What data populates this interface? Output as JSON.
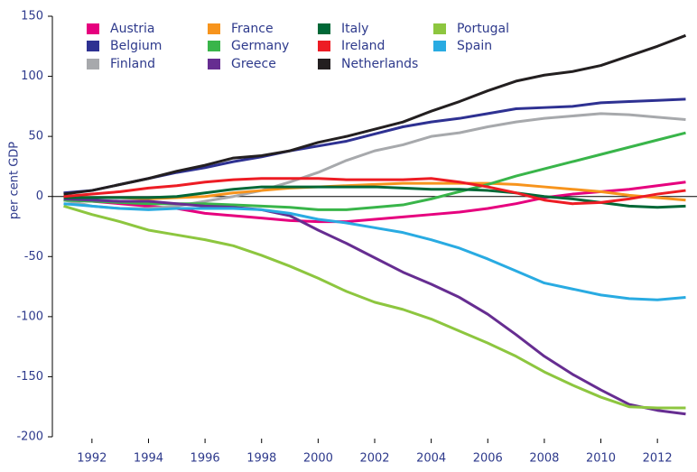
{
  "chart_data": {
    "type": "line",
    "y_label": "per cent GDP",
    "x": [
      1991,
      1992,
      1993,
      1994,
      1995,
      1996,
      1997,
      1998,
      1999,
      2000,
      2001,
      2002,
      2003,
      2004,
      2005,
      2006,
      2007,
      2008,
      2009,
      2010,
      2011,
      2012,
      2013
    ],
    "xlim": [
      1990.6,
      2013.4
    ],
    "xticks": [
      1992,
      1994,
      1996,
      1998,
      2000,
      2002,
      2004,
      2006,
      2008,
      2010,
      2012
    ],
    "ylim": [
      -200,
      150
    ],
    "yticks": [
      150,
      100,
      50,
      0,
      -50,
      -100,
      -150,
      -200
    ],
    "series": [
      {
        "name": "Austria",
        "color": "#e6007e",
        "values": [
          -3,
          -4,
          -6,
          -8,
          -10,
          -14,
          -16,
          -18,
          -20,
          -21,
          -21,
          -19,
          -17,
          -15,
          -13,
          -10,
          -6,
          -1,
          2,
          4,
          6,
          9,
          12
        ]
      },
      {
        "name": "Belgium",
        "color": "#2e3192",
        "values": [
          3,
          5,
          10,
          15,
          20,
          24,
          29,
          33,
          38,
          42,
          46,
          52,
          58,
          62,
          65,
          69,
          73,
          74,
          75,
          78,
          79,
          80,
          81
        ]
      },
      {
        "name": "Finland",
        "color": "#a7a9ac",
        "values": [
          -3,
          -8,
          -10,
          -10,
          -8,
          -4,
          0,
          5,
          12,
          20,
          30,
          38,
          43,
          50,
          53,
          58,
          62,
          65,
          67,
          69,
          68,
          66,
          64
        ]
      },
      {
        "name": "France",
        "color": "#f7941d",
        "values": [
          0,
          -1,
          -1,
          -2,
          -1,
          0,
          3,
          5,
          7,
          8,
          9,
          10,
          11,
          11,
          11,
          11,
          10,
          8,
          6,
          4,
          1,
          -1,
          -3
        ]
      },
      {
        "name": "Germany",
        "color": "#39b54a",
        "values": [
          -3,
          -4,
          -5,
          -6,
          -6,
          -6,
          -7,
          -8,
          -9,
          -11,
          -11,
          -9,
          -7,
          -2,
          4,
          10,
          17,
          23,
          29,
          35,
          41,
          47,
          53
        ]
      },
      {
        "name": "Greece",
        "color": "#662d91",
        "values": [
          -2,
          -3,
          -4,
          -4,
          -6,
          -8,
          -9,
          -11,
          -16,
          -28,
          -39,
          -51,
          -63,
          -73,
          -84,
          -98,
          -115,
          -133,
          -148,
          -161,
          -173,
          -178,
          -181
        ]
      },
      {
        "name": "Italy",
        "color": "#006837",
        "values": [
          -1,
          -1,
          -1,
          -1,
          0,
          3,
          6,
          8,
          8,
          8,
          8,
          8,
          7,
          6,
          6,
          5,
          3,
          0,
          -2,
          -5,
          -8,
          -9,
          -8
        ]
      },
      {
        "name": "Ireland",
        "color": "#ed1c24",
        "values": [
          0,
          2,
          4,
          7,
          9,
          12,
          14,
          15,
          15,
          15,
          14,
          14,
          14,
          15,
          12,
          8,
          3,
          -3,
          -6,
          -5,
          -2,
          2,
          5
        ]
      },
      {
        "name": "Netherlands",
        "color": "#231f20",
        "values": [
          2,
          5,
          10,
          15,
          21,
          26,
          32,
          34,
          38,
          45,
          50,
          56,
          62,
          71,
          79,
          88,
          96,
          101,
          104,
          109,
          117,
          125,
          134
        ]
      },
      {
        "name": "Portugal",
        "color": "#8dc63f",
        "values": [
          -8,
          -15,
          -21,
          -28,
          -32,
          -36,
          -41,
          -49,
          -58,
          -68,
          -79,
          -88,
          -94,
          -102,
          -112,
          -122,
          -133,
          -146,
          -157,
          -167,
          -175,
          -176,
          -176
        ]
      },
      {
        "name": "Spain",
        "color": "#29abe2",
        "values": [
          -6,
          -8,
          -10,
          -11,
          -10,
          -10,
          -10,
          -11,
          -14,
          -19,
          -22,
          -26,
          -30,
          -36,
          -43,
          -52,
          -62,
          -72,
          -77,
          -82,
          -85,
          -86,
          -84
        ]
      }
    ]
  }
}
